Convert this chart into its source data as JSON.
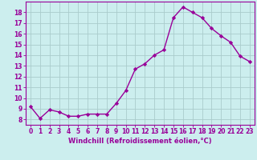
{
  "x": [
    0,
    1,
    2,
    3,
    4,
    5,
    6,
    7,
    8,
    9,
    10,
    11,
    12,
    13,
    14,
    15,
    16,
    17,
    18,
    19,
    20,
    21,
    22,
    23
  ],
  "y": [
    9.2,
    8.1,
    8.9,
    8.7,
    8.3,
    8.3,
    8.5,
    8.5,
    8.5,
    9.5,
    10.7,
    12.7,
    13.2,
    14.0,
    14.5,
    17.5,
    18.5,
    18.0,
    17.5,
    16.5,
    15.8,
    15.2,
    13.9,
    13.4
  ],
  "line_color": "#990099",
  "marker": "D",
  "marker_size": 2.2,
  "bg_color": "#cceeee",
  "grid_color": "#aacccc",
  "xlabel": "Windchill (Refroidissement éolien,°C)",
  "ylabel": "",
  "ylim": [
    7.5,
    19.0
  ],
  "xlim": [
    -0.5,
    23.5
  ],
  "yticks": [
    8,
    9,
    10,
    11,
    12,
    13,
    14,
    15,
    16,
    17,
    18
  ],
  "xticks": [
    0,
    1,
    2,
    3,
    4,
    5,
    6,
    7,
    8,
    9,
    10,
    11,
    12,
    13,
    14,
    15,
    16,
    17,
    18,
    19,
    20,
    21,
    22,
    23
  ],
  "label_color": "#990099",
  "tick_color": "#990099",
  "line_width": 1.0,
  "tick_fontsize": 5.5,
  "xlabel_fontsize": 6.0
}
